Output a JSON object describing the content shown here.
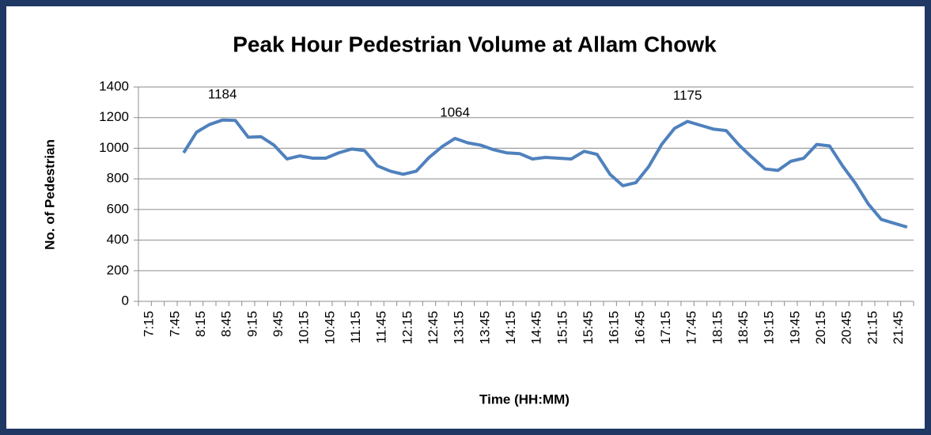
{
  "chart_data": {
    "type": "line",
    "title": "Peak Hour Pedestrian Volume at Allam Chowk",
    "x_label": "Time (HH:MM)",
    "y_label": "No. of Pedestrian",
    "categories": [
      "7:15",
      null,
      "7:45",
      null,
      "8:15",
      null,
      "8:45",
      null,
      "9:15",
      null,
      "9:45",
      null,
      "10:15",
      null,
      "10:45",
      null,
      "11:15",
      null,
      "11:45",
      null,
      "12:15",
      null,
      "12:45",
      null,
      "13:15",
      null,
      "13:45",
      null,
      "14:15",
      null,
      "14:45",
      null,
      "15:15",
      null,
      "15:45",
      null,
      "16:15",
      null,
      "16:45",
      null,
      "17:15",
      null,
      "17:45",
      null,
      "18:15",
      null,
      "18:45",
      null,
      "19:15",
      null,
      "19:45",
      null,
      "20:15",
      null,
      "20:45",
      null,
      "21:15",
      null,
      "21:45",
      null
    ],
    "series": [
      {
        "name": "Pedestrian",
        "color": "#4f81bd",
        "values": [
          null,
          null,
          null,
          970,
          1105,
          1155,
          1184,
          1182,
          1072,
          1075,
          1020,
          930,
          950,
          935,
          935,
          970,
          995,
          985,
          885,
          850,
          830,
          850,
          940,
          1010,
          1064,
          1035,
          1020,
          990,
          970,
          965,
          930,
          940,
          935,
          930,
          980,
          960,
          830,
          755,
          775,
          880,
          1025,
          1130,
          1175,
          1150,
          1125,
          1115,
          1020,
          940,
          865,
          855,
          915,
          935,
          1025,
          1015,
          885,
          770,
          635,
          535,
          510,
          485
        ],
        "value_labels": [
          null,
          null,
          null,
          null,
          null,
          null,
          "1184",
          null,
          null,
          null,
          null,
          null,
          null,
          null,
          null,
          null,
          null,
          null,
          null,
          null,
          null,
          null,
          null,
          null,
          "1064",
          null,
          null,
          null,
          null,
          null,
          null,
          null,
          null,
          null,
          null,
          null,
          null,
          null,
          null,
          null,
          null,
          null,
          "1175",
          null,
          null,
          null,
          null,
          null,
          null,
          null,
          null,
          null,
          null,
          null,
          null,
          null,
          null,
          null,
          null,
          null
        ]
      }
    ],
    "ylim": [
      0,
      1400
    ],
    "yticks": [
      0,
      200,
      400,
      600,
      800,
      1000,
      1200,
      1400
    ],
    "grid": true
  }
}
